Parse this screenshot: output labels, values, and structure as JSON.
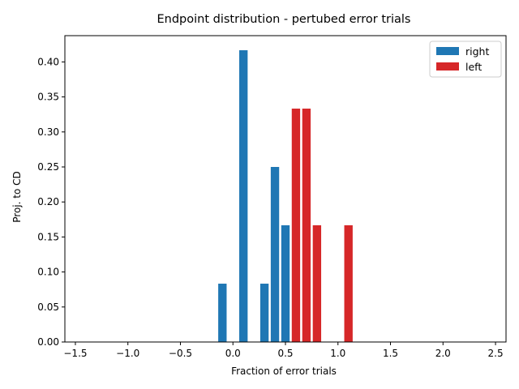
{
  "chart_data": {
    "type": "bar",
    "title": "Endpoint distribution - pertubed error trials",
    "xlabel": "Fraction of error trials",
    "ylabel": "Proj. to CD",
    "xlim": [
      -1.6,
      2.6
    ],
    "ylim": [
      0,
      0.4375
    ],
    "xticks": [
      -1.5,
      -1.0,
      -0.5,
      0.0,
      0.5,
      1.0,
      1.5,
      2.0,
      2.5
    ],
    "xtick_labels": [
      "−1.5",
      "−1.0",
      "−0.5",
      "0.0",
      "0.5",
      "1.0",
      "1.5",
      "2.0",
      "2.5"
    ],
    "yticks": [
      0.0,
      0.05,
      0.1,
      0.15,
      0.2,
      0.25,
      0.3,
      0.35,
      0.4
    ],
    "ytick_labels": [
      "0.00",
      "0.05",
      "0.10",
      "0.15",
      "0.20",
      "0.25",
      "0.30",
      "0.35",
      "0.40"
    ],
    "bar_width": 0.08,
    "grid": false,
    "legend_position": "top-right",
    "series": [
      {
        "name": "right",
        "color": "#1f77b4",
        "x": [
          -0.1,
          0.1,
          0.3,
          0.4,
          0.5
        ],
        "values": [
          0.0833,
          0.4167,
          0.0833,
          0.25,
          0.1667
        ]
      },
      {
        "name": "left",
        "color": "#d62728",
        "x": [
          0.6,
          0.7,
          0.8,
          1.1
        ],
        "values": [
          0.3333,
          0.3333,
          0.1667,
          0.1667
        ]
      }
    ]
  }
}
